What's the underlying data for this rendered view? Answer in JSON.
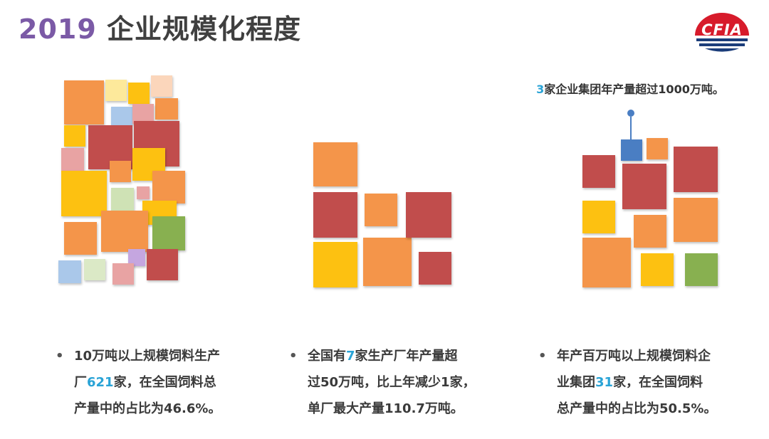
{
  "header": {
    "title_year": "2019",
    "title_text": "企业规模化程度",
    "logo_text": "CFIA"
  },
  "colors": {
    "orange": "#f4954a",
    "red": "#c14d4c",
    "yellow": "#fdc111",
    "blue": "#4a7ec3",
    "green": "#88b050",
    "purple": "#7b5aa6",
    "highlight": "#29a3d6",
    "logo_red": "#d71b2b",
    "logo_blue": "#1b3d7a"
  },
  "middle_note": {
    "num": "3",
    "text": "家企业集团年产量超过1000万吨。"
  },
  "captions": [
    {
      "bullet": "•",
      "line1": "10万吨以上规模饲料生产",
      "line2_pre": "厂",
      "line2_num": "621",
      "line2_post": "家，在全国饲料总",
      "line3": "产量中的占比为46.6%。"
    },
    {
      "bullet": "•",
      "line1_pre": "全国有",
      "line1_num": "7",
      "line1_post": "家生产厂年产量超",
      "line2": "过50万吨，比上年减少1家，",
      "line3": "单厂最大产量110.7万吨。"
    },
    {
      "bullet": "•",
      "line1": "年产百万吨以上规模饲料企",
      "line2_pre": "业集团",
      "line2_num": "31",
      "line2_post": "家，在全国饲料",
      "line3": "总产量中的占比为50.5%。"
    }
  ]
}
